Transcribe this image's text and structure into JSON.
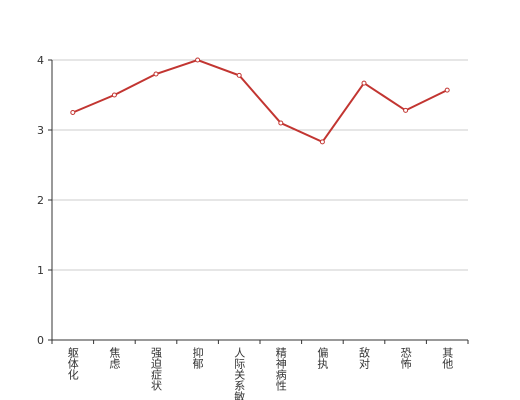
{
  "chart_data": {
    "type": "line",
    "categories": [
      "躯体化",
      "焦虑",
      "强迫症状",
      "抑郁",
      "人际关系敏感",
      "精神病性",
      "偏执",
      "敌对",
      "恐怖",
      "其他"
    ],
    "series": [
      {
        "color": "#c23531",
        "values": [
          3.25,
          3.5,
          3.8,
          4.0,
          3.78,
          3.1,
          2.83,
          3.67,
          3.28,
          3.57
        ]
      }
    ],
    "ylim": [
      0,
      4
    ],
    "yticks": [
      0,
      1,
      2,
      3,
      4
    ],
    "grid": true
  }
}
